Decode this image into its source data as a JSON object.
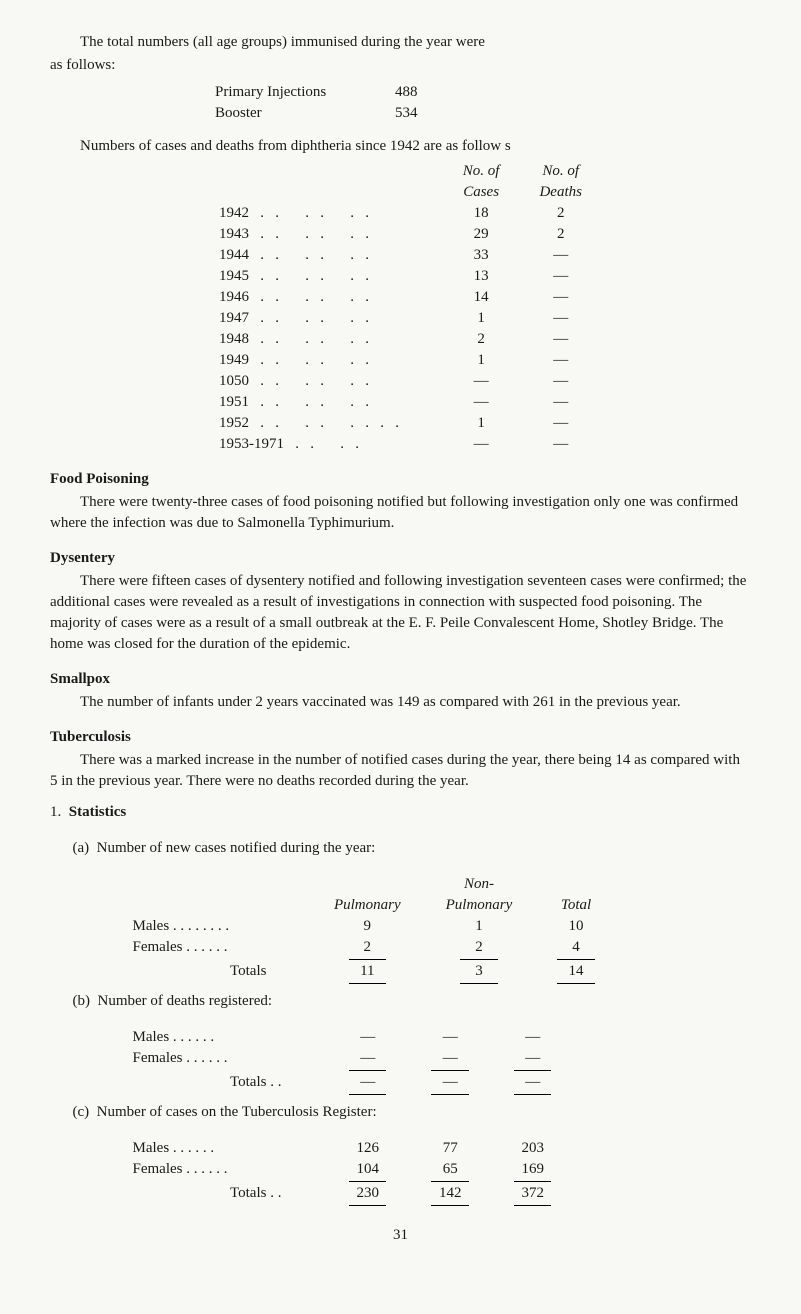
{
  "intro": {
    "para1a": "The total numbers (all age groups) immunised during the year were",
    "para1b": "as follows:",
    "injections": [
      {
        "label": "Primary Injections",
        "value": "488"
      },
      {
        "label": "Booster",
        "value": "534"
      }
    ],
    "para2": "Numbers of cases and deaths from diphtheria since 1942 are as follow s",
    "diphtheria": {
      "header1a": "No. of",
      "header1b": "Cases",
      "header2a": "No. of",
      "header2b": "Deaths",
      "rows": [
        {
          "year": "1942",
          "dots": ". .   . .   . .",
          "cases": "18",
          "deaths": "2"
        },
        {
          "year": "1943",
          "dots": ". .   . .   . .",
          "cases": "29",
          "deaths": "2"
        },
        {
          "year": "1944",
          "dots": ". .   . .   . .",
          "cases": "33",
          "deaths": "—"
        },
        {
          "year": "1945",
          "dots": ". .   . .   . .",
          "cases": "13",
          "deaths": "—"
        },
        {
          "year": "1946",
          "dots": ". .   . .   . .",
          "cases": "14",
          "deaths": "—"
        },
        {
          "year": "1947",
          "dots": ". .   . .   . .",
          "cases": "1",
          "deaths": "—"
        },
        {
          "year": "1948",
          "dots": ". .   . .   . .",
          "cases": "2",
          "deaths": "—"
        },
        {
          "year": "1949",
          "dots": ". .   . .   . .",
          "cases": "1",
          "deaths": "—"
        },
        {
          "year": "1050",
          "dots": ". .   . .   . .",
          "cases": "—",
          "deaths": "—"
        },
        {
          "year": "1951",
          "dots": ". .   . .   . .",
          "cases": "—",
          "deaths": "—"
        },
        {
          "year": "1952",
          "dots": ". .   . .   . . . .",
          "cases": "1",
          "deaths": "—"
        },
        {
          "year": "1953-1971",
          "dots": ". .   . .",
          "cases": "—",
          "deaths": "—"
        }
      ]
    }
  },
  "sections": {
    "food": {
      "heading": "Food Poisoning",
      "body": "There were twenty-three cases of food poisoning notified but following investigation only one was confirmed where the infection was due to Salmonella Typhimurium."
    },
    "dysentery": {
      "heading": "Dysentery",
      "body": "There were fifteen cases of dysentery notified and following investigation seventeen cases were confirmed; the additional cases were revealed as a result of investigations in connection with suspected food poisoning. The majority of cases were as a result of a small outbreak at the E. F. Peile Convalescent Home, Shotley Bridge. The home was closed for the duration of the epidemic."
    },
    "smallpox": {
      "heading": "Smallpox",
      "body": "The number of infants under 2 years vaccinated was 149 as compared with 261 in the previous year."
    },
    "tb": {
      "heading": "Tuberculosis",
      "body": "There was a marked increase in the number of notified cases during the year, there being 14 as compared with 5 in the previous year. There were no deaths recorded during the year."
    }
  },
  "stats": {
    "num": "1.",
    "heading": "Statistics",
    "a": {
      "letter": "(a)",
      "label": "Number of new cases notified during the year:",
      "col1": "Pulmonary",
      "col2t": "Non-",
      "col2b": "Pulmonary",
      "col3": "Total",
      "males": {
        "label": "Males . .   . .   . .   . .",
        "v1": "9",
        "v2": "1",
        "v3": "10"
      },
      "females": {
        "label": "Females      . .   . .   . .",
        "v1": "2",
        "v2": "2",
        "v3": "4"
      },
      "totals": {
        "label": "Totals",
        "v1": "11",
        "v2": "3",
        "v3": "14"
      }
    },
    "b": {
      "letter": "(b)",
      "label": "Number of deaths registered:",
      "males": {
        "label": "Males         . .   . .   . .",
        "v1": "—",
        "v2": "—",
        "v3": "—"
      },
      "females": {
        "label": "Females      . .   . .   . .",
        "v1": "—",
        "v2": "—",
        "v3": "—"
      },
      "totals": {
        "label": "Totals . .",
        "v1": "—",
        "v2": "—",
        "v3": "—"
      }
    },
    "c": {
      "letter": "(c)",
      "label": "Number of cases on the Tuberculosis Register:",
      "males": {
        "label": "Males         . .   . .   . .",
        "v1": "126",
        "v2": "77",
        "v3": "203"
      },
      "females": {
        "label": "Females      . .   . .   . .",
        "v1": "104",
        "v2": "65",
        "v3": "169"
      },
      "totals": {
        "label": "Totals . .",
        "v1": "230",
        "v2": "142",
        "v3": "372"
      }
    }
  },
  "page_number": "31"
}
